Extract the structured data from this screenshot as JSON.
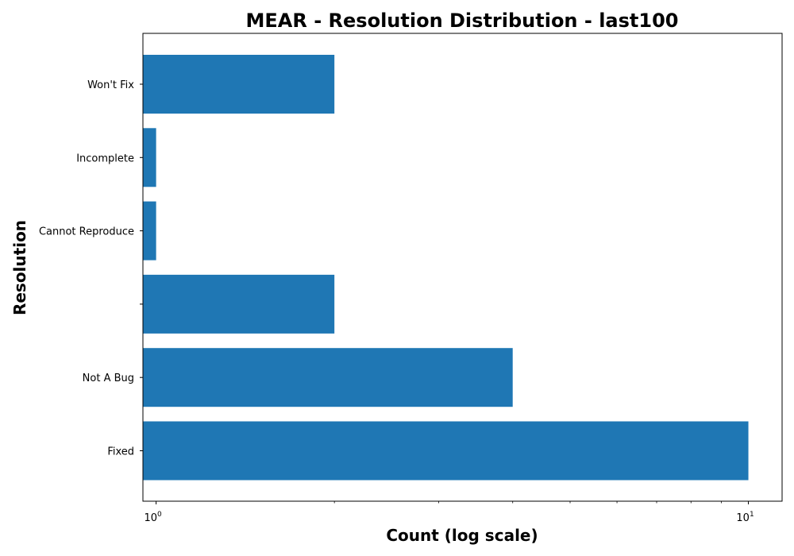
{
  "chart_data": {
    "type": "bar",
    "orientation": "horizontal",
    "title": "MEAR - Resolution Distribution - last100",
    "xlabel": "Count (log scale)",
    "ylabel": "Resolution",
    "x_scale": "log",
    "xlim": [
      0.95,
      11.4
    ],
    "categories": [
      "Fixed",
      "Not A Bug",
      "",
      "Cannot Reproduce",
      "Incomplete",
      "Won't Fix"
    ],
    "values": [
      10,
      4,
      2,
      1,
      1,
      2
    ],
    "x_major_ticks": [
      {
        "value": 1,
        "base": "10",
        "exp": "0"
      },
      {
        "value": 10,
        "base": "10",
        "exp": "1"
      }
    ],
    "x_minor_ticks": [
      2,
      3,
      4,
      5,
      6,
      7,
      8,
      9
    ],
    "bar_color": "#1f77b4",
    "grid": false,
    "legend": "none"
  }
}
